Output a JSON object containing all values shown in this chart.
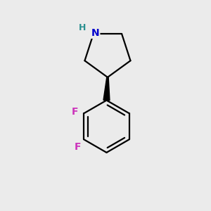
{
  "background_color": "#ebebeb",
  "bond_color": "#000000",
  "N_color": "#0000cc",
  "H_color": "#2a9090",
  "F_color": "#cc33bb",
  "line_width": 1.6,
  "font_size_N": 10,
  "font_size_H": 9,
  "font_size_F": 10,
  "figsize": [
    3.0,
    3.0
  ],
  "dpi": 100,
  "xlim": [
    0,
    10
  ],
  "ylim": [
    0,
    10
  ]
}
